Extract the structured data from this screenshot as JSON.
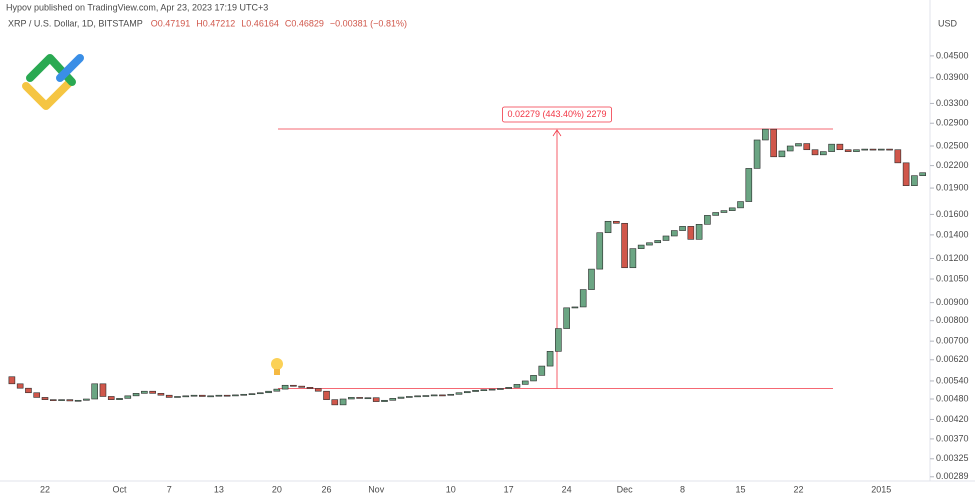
{
  "header": "Hypov published on TradingView.com, Apr 23, 2023 17:19 UTC+3",
  "chart_data": {
    "type": "candlestick",
    "title": "XRP / U.S. Dollar, 1D, BITSTAMP",
    "ohlc_labels": [
      "O0.47191",
      "H0.47212",
      "L0.46164",
      "C0.46829",
      "−0.00381 (−0.81%)"
    ],
    "y_axis_label": "USD",
    "yscale": "log",
    "grid": false,
    "up_color": "#6ba583",
    "down_color": "#d0574b",
    "ylim": [
      0.00283,
      0.0607
    ],
    "yticks": [
      {
        "value": 0.045,
        "label": "0.04500"
      },
      {
        "value": 0.039,
        "label": "0.03900"
      },
      {
        "value": 0.033,
        "label": "0.03300"
      },
      {
        "value": 0.029,
        "label": "0.02900"
      },
      {
        "value": 0.025,
        "label": "0.02500"
      },
      {
        "value": 0.022,
        "label": "0.02200"
      },
      {
        "value": 0.019,
        "label": "0.01900"
      },
      {
        "value": 0.016,
        "label": "0.01600"
      },
      {
        "value": 0.014,
        "label": "0.01400"
      },
      {
        "value": 0.012,
        "label": "0.01200"
      },
      {
        "value": 0.0105,
        "label": "0.01050"
      },
      {
        "value": 0.009,
        "label": "0.00900"
      },
      {
        "value": 0.008,
        "label": "0.00800"
      },
      {
        "value": 0.007,
        "label": "0.00700"
      },
      {
        "value": 0.0062,
        "label": "0.00620"
      },
      {
        "value": 0.0054,
        "label": "0.00540"
      },
      {
        "value": 0.0048,
        "label": "0.00480"
      },
      {
        "value": 0.0042,
        "label": "0.00420"
      },
      {
        "value": 0.0037,
        "label": "0.00370"
      },
      {
        "value": 0.00325,
        "label": "0.00325"
      },
      {
        "value": 0.00289,
        "label": "0.00289"
      }
    ],
    "categories": [
      null,
      null,
      null,
      null,
      "22",
      null,
      null,
      null,
      null,
      null,
      null,
      null,
      null,
      "Oct",
      null,
      null,
      null,
      null,
      null,
      "7",
      null,
      null,
      null,
      null,
      null,
      "13",
      null,
      null,
      null,
      null,
      null,
      null,
      "20",
      null,
      null,
      null,
      null,
      null,
      "26",
      null,
      null,
      null,
      null,
      null,
      "Nov",
      null,
      null,
      null,
      null,
      null,
      null,
      null,
      null,
      "10",
      null,
      null,
      null,
      null,
      null,
      null,
      "17",
      null,
      null,
      null,
      null,
      null,
      null,
      "24",
      null,
      null,
      null,
      null,
      null,
      null,
      "Dec",
      null,
      null,
      null,
      null,
      null,
      null,
      "8",
      null,
      null,
      null,
      null,
      null,
      null,
      "15",
      null,
      null,
      null,
      null,
      null,
      null,
      "22",
      null,
      null,
      null,
      null,
      null,
      null,
      null,
      null,
      null,
      "2015",
      null,
      null,
      null,
      null,
      null
    ],
    "open": [
      0.00555,
      0.0053,
      0.00515,
      0.005,
      0.00485,
      0.00478,
      0.00475,
      0.00478,
      0.00474,
      0.00476,
      0.0048,
      0.0053,
      0.00488,
      0.00478,
      0.00482,
      0.0049,
      0.00498,
      0.00505,
      0.00498,
      0.00492,
      0.00485,
      0.00488,
      0.0049,
      0.00492,
      0.00488,
      0.0049,
      0.00492,
      0.0049,
      0.00493,
      0.00495,
      0.00497,
      0.005,
      0.00505,
      0.00512,
      0.00525,
      0.00522,
      0.00518,
      0.00514,
      0.00505,
      0.00478,
      0.00462,
      0.0048,
      0.00485,
      0.00482,
      0.00484,
      0.00472,
      0.00476,
      0.00482,
      0.00486,
      0.00488,
      0.0049,
      0.00491,
      0.00493,
      0.00492,
      0.00495,
      0.005,
      0.00504,
      0.00508,
      0.0051,
      0.00512,
      0.00514,
      0.00518,
      0.00528,
      0.0054,
      0.0056,
      0.00595,
      0.00655,
      0.0076,
      0.0087,
      0.00875,
      0.0098,
      0.0112,
      0.0142,
      0.0153,
      0.0151,
      0.0113,
      0.0128,
      0.0131,
      0.0133,
      0.0135,
      0.0139,
      0.0144,
      0.0148,
      0.0136,
      0.015,
      0.0159,
      0.0162,
      0.0164,
      0.0167,
      0.0174,
      0.0216,
      0.026,
      0.0279,
      0.0233,
      0.0242,
      0.025,
      0.0254,
      0.0244,
      0.0236,
      0.0241,
      0.0253,
      0.0244,
      0.0241,
      0.0244,
      0.0245,
      0.0244,
      0.0245,
      0.0244,
      0.0224,
      0.0193,
      0.0206
    ],
    "close": [
      0.0053,
      0.00515,
      0.005,
      0.00485,
      0.00478,
      0.00475,
      0.00478,
      0.00474,
      0.00476,
      0.0048,
      0.0053,
      0.00488,
      0.00478,
      0.00482,
      0.0049,
      0.00498,
      0.00505,
      0.00498,
      0.00492,
      0.00485,
      0.00488,
      0.0049,
      0.00492,
      0.00488,
      0.0049,
      0.00492,
      0.0049,
      0.00493,
      0.00495,
      0.00497,
      0.005,
      0.00505,
      0.00512,
      0.00525,
      0.00522,
      0.00518,
      0.00514,
      0.00505,
      0.00478,
      0.00462,
      0.0048,
      0.00485,
      0.00482,
      0.00484,
      0.00472,
      0.00476,
      0.00482,
      0.00486,
      0.00488,
      0.0049,
      0.00491,
      0.00493,
      0.00492,
      0.00495,
      0.005,
      0.00504,
      0.00508,
      0.0051,
      0.00512,
      0.00514,
      0.00518,
      0.00528,
      0.0054,
      0.0056,
      0.00595,
      0.00655,
      0.0076,
      0.0087,
      0.00875,
      0.0098,
      0.0112,
      0.0142,
      0.0153,
      0.0151,
      0.0113,
      0.0128,
      0.0131,
      0.0133,
      0.0135,
      0.0139,
      0.0144,
      0.0148,
      0.0136,
      0.015,
      0.0159,
      0.0162,
      0.0164,
      0.0167,
      0.0174,
      0.0216,
      0.026,
      0.0279,
      0.0233,
      0.0242,
      0.025,
      0.0254,
      0.0244,
      0.0236,
      0.0241,
      0.0253,
      0.0244,
      0.0241,
      0.0244,
      0.0245,
      0.0244,
      0.0245,
      0.0244,
      0.0224,
      0.0193,
      0.0206,
      0.021
    ],
    "measure": {
      "from": 0.00514,
      "to": 0.02793,
      "label": "0.02279 (443.40%) 2279",
      "color": "#f23645"
    }
  }
}
